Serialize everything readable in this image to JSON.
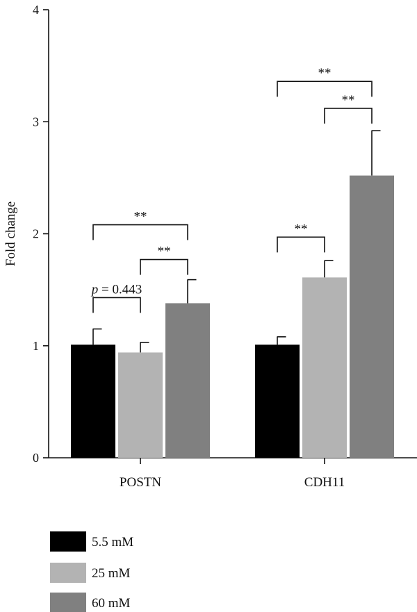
{
  "chart_data": {
    "type": "bar",
    "ylabel": "Fold change",
    "xlabel": "",
    "ylim": [
      0,
      4
    ],
    "yticks": [
      "0",
      "1",
      "2",
      "3",
      "4"
    ],
    "categories": [
      "POSTN",
      "CDH11"
    ],
    "series": [
      {
        "name": "5.5 mM",
        "color": "#000000",
        "values": [
          1.01,
          1.01
        ],
        "errors": [
          0.14,
          0.07
        ]
      },
      {
        "name": "25 mM",
        "color": "#b3b3b3",
        "values": [
          0.94,
          1.61
        ],
        "errors": [
          0.09,
          0.15
        ]
      },
      {
        "name": "60 mM",
        "color": "#808080",
        "values": [
          1.38,
          2.52
        ],
        "errors": [
          0.21,
          0.4
        ]
      }
    ],
    "annotations": [
      {
        "category": 0,
        "from": 0,
        "to": 1,
        "p_prefix": "p",
        "text": " = 0.443",
        "y": 1.43
      },
      {
        "category": 0,
        "from": 1,
        "to": 2,
        "text": "**",
        "y": 1.77
      },
      {
        "category": 0,
        "from": 0,
        "to": 2,
        "text": "**",
        "y": 2.08
      },
      {
        "category": 1,
        "from": 0,
        "to": 1,
        "text": "**",
        "y": 1.97
      },
      {
        "category": 1,
        "from": 1,
        "to": 2,
        "text": "**",
        "y": 3.12
      },
      {
        "category": 1,
        "from": 0,
        "to": 2,
        "text": "**",
        "y": 3.36
      }
    ],
    "legend_position": "bottom-left"
  }
}
